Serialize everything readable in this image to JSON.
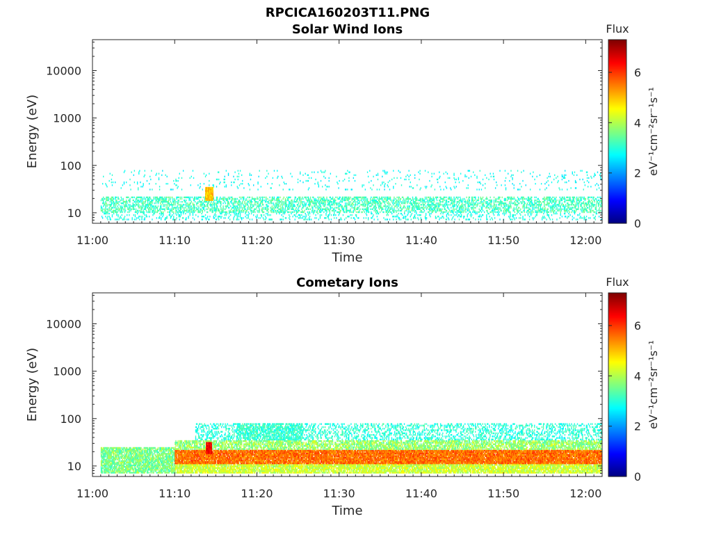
{
  "figure_title": "RPCICA160203T11.PNG",
  "chart_data": [
    {
      "type": "heatmap",
      "title": "Solar Wind Ions",
      "xlabel": "Time",
      "ylabel": "Energy (eV)",
      "x_ticks": [
        "11:00",
        "11:10",
        "11:20",
        "11:30",
        "11:40",
        "11:50",
        "12:00"
      ],
      "x_range_minutes": [
        0,
        62
      ],
      "y_scale": "log",
      "y_ticks": [
        10,
        100,
        1000,
        10000
      ],
      "y_tick_labels": [
        "10",
        "100",
        "1000",
        "10000"
      ],
      "y_range": [
        6,
        45000
      ],
      "colorbar": {
        "title": "Flux",
        "label": "eV⁻¹cm⁻²sr⁻¹s⁻¹",
        "ticks": [
          0,
          2,
          4,
          6
        ],
        "range": [
          0,
          7.3
        ],
        "colormap": "jet"
      },
      "bands": [
        {
          "t_start": 1.0,
          "t_end": 62.0,
          "e_min": 10,
          "e_max": 22,
          "density": 0.45,
          "level": 3.2,
          "level_jitter": 0.5
        },
        {
          "t_start": 1.0,
          "t_end": 62.0,
          "e_min": 7,
          "e_max": 10,
          "density": 0.18,
          "level": 2.9,
          "level_jitter": 0.3
        },
        {
          "t_start": 1.0,
          "t_end": 62.0,
          "e_min": 30,
          "e_max": 80,
          "density": 0.05,
          "level": 2.8,
          "level_jitter": 0.3
        },
        {
          "t_start": 13.7,
          "t_end": 14.6,
          "e_min": 18,
          "e_max": 35,
          "density": 1.0,
          "level": 5.0,
          "level_jitter": 0.4
        }
      ]
    },
    {
      "type": "heatmap",
      "title": "Cometary Ions",
      "xlabel": "Time",
      "ylabel": "Energy (eV)",
      "x_ticks": [
        "11:00",
        "11:10",
        "11:20",
        "11:30",
        "11:40",
        "11:50",
        "12:00"
      ],
      "x_range_minutes": [
        0,
        62
      ],
      "y_scale": "log",
      "y_ticks": [
        10,
        100,
        1000,
        10000
      ],
      "y_tick_labels": [
        "10",
        "100",
        "1000",
        "10000"
      ],
      "y_range": [
        6,
        45000
      ],
      "colorbar": {
        "title": "Flux",
        "label": "eV⁻¹cm⁻²sr⁻¹s⁻¹",
        "ticks": [
          0,
          2,
          4,
          6
        ],
        "range": [
          0,
          7.3
        ],
        "colormap": "jet"
      },
      "bands": [
        {
          "t_start": 1.0,
          "t_end": 10.0,
          "e_min": 7,
          "e_max": 25,
          "density": 0.8,
          "level": 3.6,
          "level_jitter": 0.6
        },
        {
          "t_start": 10.0,
          "t_end": 62.0,
          "e_min": 7,
          "e_max": 11,
          "density": 0.85,
          "level": 4.2,
          "level_jitter": 0.5
        },
        {
          "t_start": 10.0,
          "t_end": 62.0,
          "e_min": 11,
          "e_max": 22,
          "density": 0.95,
          "level": 5.6,
          "level_jitter": 0.5
        },
        {
          "t_start": 10.0,
          "t_end": 62.0,
          "e_min": 22,
          "e_max": 35,
          "density": 0.7,
          "level": 3.8,
          "level_jitter": 0.6
        },
        {
          "t_start": 12.5,
          "t_end": 62.0,
          "e_min": 35,
          "e_max": 80,
          "density": 0.35,
          "level": 3.0,
          "level_jitter": 0.4
        },
        {
          "t_start": 17.5,
          "t_end": 25.5,
          "e_min": 35,
          "e_max": 80,
          "density": 0.55,
          "level": 3.1,
          "level_jitter": 0.4
        },
        {
          "t_start": 13.8,
          "t_end": 14.5,
          "e_min": 18,
          "e_max": 32,
          "density": 1.0,
          "level": 6.4,
          "level_jitter": 0.4
        }
      ]
    }
  ]
}
